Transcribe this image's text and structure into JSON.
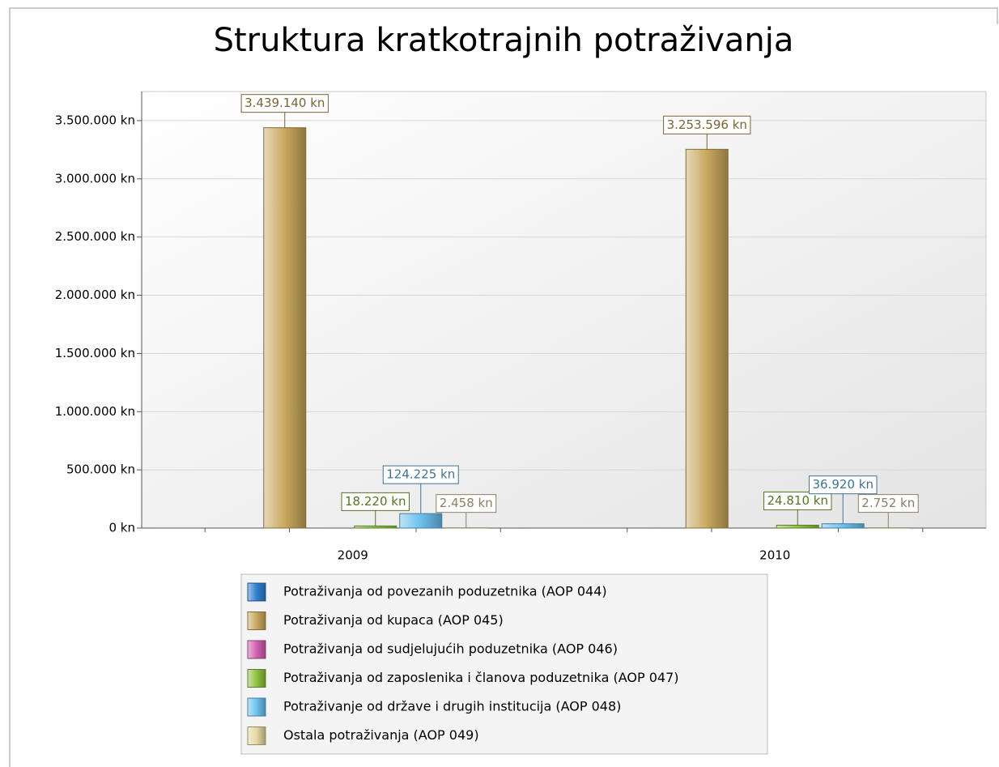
{
  "chart_data": {
    "type": "bar",
    "title": "Struktura kratkotrajnih potraživanja",
    "categories": [
      "2009",
      "2010"
    ],
    "ylim": [
      0,
      3750000
    ],
    "yticks": [
      {
        "value": 0,
        "label": "0 kn"
      },
      {
        "value": 500000,
        "label": "500.000 kn"
      },
      {
        "value": 1000000,
        "label": "1.000.000 kn"
      },
      {
        "value": 1500000,
        "label": "1.500.000 kn"
      },
      {
        "value": 2000000,
        "label": "2.000.000 kn"
      },
      {
        "value": 2500000,
        "label": "2.500.000 kn"
      },
      {
        "value": 3000000,
        "label": "3.000.000 kn"
      },
      {
        "value": 3500000,
        "label": "3.500.000 kn"
      }
    ],
    "grid": true,
    "legend": "bottom",
    "series": [
      {
        "name": "Potraživanja od povezanih poduzetnika (AOP 044)",
        "color": "#2f7fd0",
        "values": [
          0,
          0
        ],
        "value_labels": [
          null,
          null
        ]
      },
      {
        "name": "Potraživanja od kupaca (AOP 045)",
        "color": "#c9a85e",
        "values": [
          3439140,
          3253596
        ],
        "value_labels": [
          "3.439.140 kn",
          "3.253.596 kn"
        ]
      },
      {
        "name": "Potraživanja od sudjelujućih poduzetnika (AOP 046)",
        "color": "#d05fb0",
        "values": [
          0,
          0
        ],
        "value_labels": [
          null,
          null
        ]
      },
      {
        "name": "Potraživanja od zaposlenika i članova poduzetnika (AOP 047)",
        "color": "#8fc23f",
        "values": [
          18220,
          24810
        ],
        "value_labels": [
          "18.220 kn",
          "24.810 kn"
        ]
      },
      {
        "name": "Potraživanje od države i drugih institucija (AOP 048)",
        "color": "#6cc0f0",
        "values": [
          124225,
          36920
        ],
        "value_labels": [
          "124.225 kn",
          "36.920 kn"
        ]
      },
      {
        "name": "Ostala potraživanja (AOP 049)",
        "color": "#e6d7a2",
        "values": [
          2458,
          2752
        ],
        "value_labels": [
          "2.458 kn",
          "2.752 kn"
        ]
      }
    ]
  }
}
